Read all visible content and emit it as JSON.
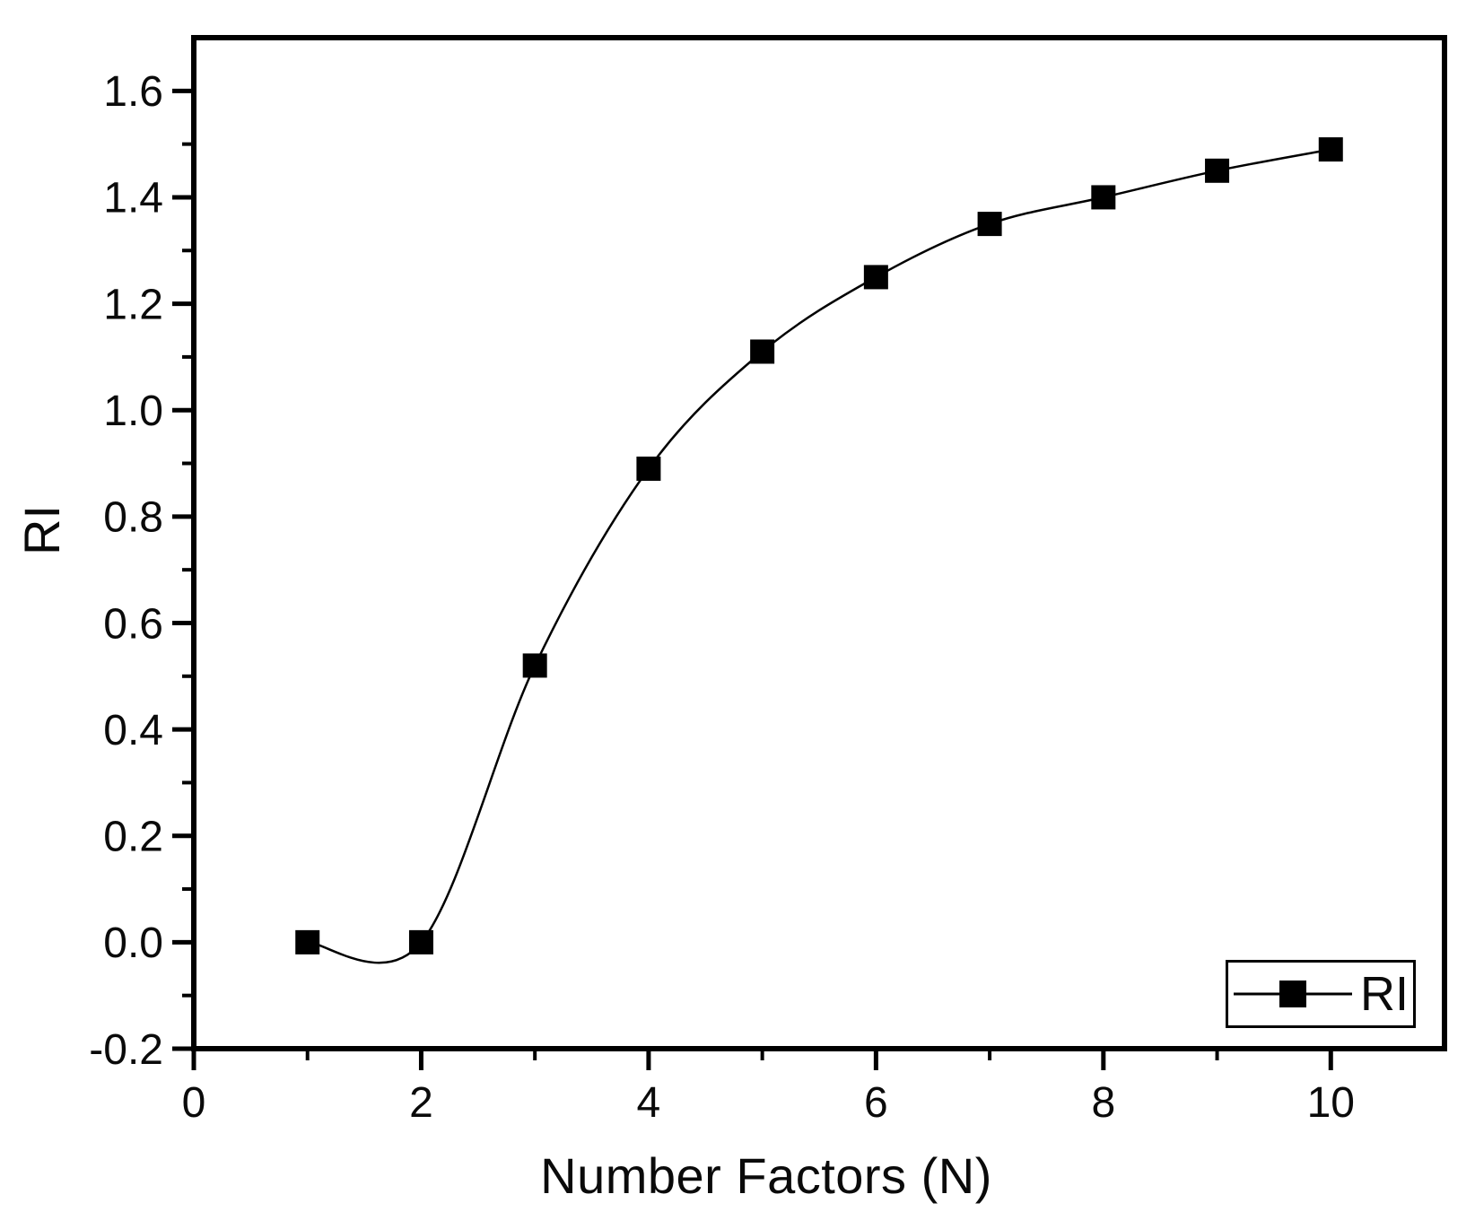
{
  "chart_data": {
    "type": "line",
    "title": "",
    "xlabel": "Number Factors (N)",
    "ylabel": "RI",
    "curve_style": "smooth-spline",
    "grid": false,
    "legend_position": "bottom-right",
    "legend": [
      {
        "label": "RI",
        "marker": "filled-square",
        "line": "solid"
      }
    ],
    "x": [
      1,
      2,
      3,
      4,
      5,
      6,
      7,
      8,
      9,
      10
    ],
    "series": [
      {
        "name": "RI",
        "values": [
          0.0,
          0.0,
          0.52,
          0.89,
          1.11,
          1.25,
          1.35,
          1.4,
          1.45,
          1.49
        ]
      }
    ],
    "xlim": [
      0,
      11
    ],
    "ylim": [
      -0.2,
      1.7
    ],
    "x_major_ticks": [
      0,
      2,
      4,
      6,
      8,
      10
    ],
    "x_tick_labels": [
      "0",
      "2",
      "4",
      "6",
      "8",
      "10"
    ],
    "x_minor_ticks": [
      1,
      3,
      5,
      7,
      9
    ],
    "y_major_ticks": [
      -0.2,
      0.0,
      0.2,
      0.4,
      0.6,
      0.8,
      1.0,
      1.2,
      1.4,
      1.6
    ],
    "y_tick_labels": [
      "-0.2",
      "0.0",
      "0.2",
      "0.4",
      "0.6",
      "0.8",
      "1.0",
      "1.2",
      "1.4",
      "1.6"
    ],
    "y_minor_ticks": [
      -0.1,
      0.1,
      0.3,
      0.5,
      0.7,
      0.9,
      1.1,
      1.3,
      1.5
    ],
    "colors": {
      "line": "#000000",
      "marker": "#000000",
      "axis": "#000000",
      "text": "#0a0a0a",
      "background": "#ffffff"
    }
  }
}
